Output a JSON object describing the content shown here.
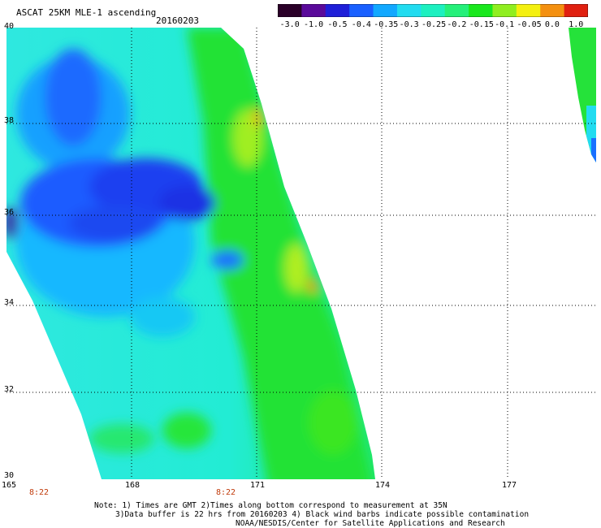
{
  "header": {
    "title": "ASCAT 25KM MLE-1 ascending",
    "date": "20160203"
  },
  "colorbar": {
    "labels": [
      "-3.0",
      "-1.0",
      "-0.5",
      "-0.4",
      "-0.35",
      "-0.3",
      "-0.25",
      "-0.2",
      "-0.15",
      "-0.1",
      "-0.05",
      "0.0",
      "1.0"
    ],
    "colors": [
      "#2a0028",
      "#5a0a9a",
      "#1f1fd8",
      "#1a60ff",
      "#12a8ff",
      "#22dcf0",
      "#1df0c0",
      "#25f07a",
      "#1ae81e",
      "#90ee20",
      "#f4f010",
      "#f49010",
      "#e02010"
    ]
  },
  "map": {
    "lat_labels": [
      "40",
      "38",
      "36",
      "34",
      "32",
      "30"
    ],
    "lon_labels": [
      "165",
      "168",
      "171",
      "174",
      "177"
    ],
    "time_labels": [
      "8:22",
      "8:22"
    ]
  },
  "footer": {
    "note_line1": "Note: 1) Times are GMT 2)Times along bottom correspond to measurement at 35N",
    "note_line2": "3)Data buffer is 22 hrs from 20160203 4) Black wind barbs indicate possible contamination",
    "credit": "NOAA/NESDIS/Center for Satellite Applications and Research"
  }
}
